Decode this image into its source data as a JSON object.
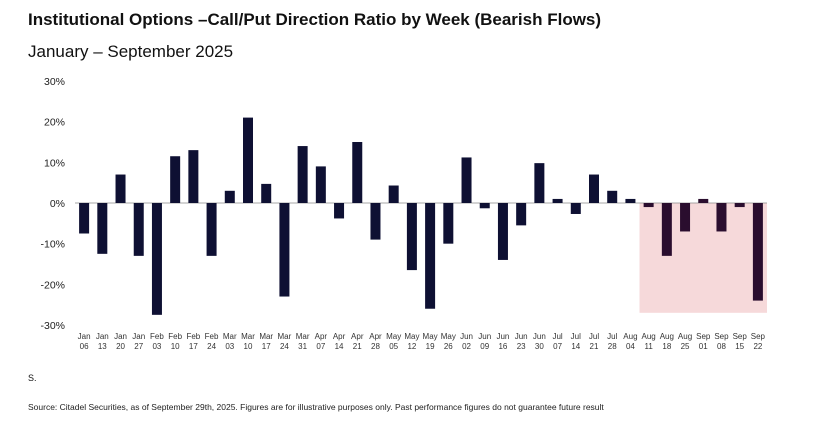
{
  "chart_data": {
    "type": "bar",
    "title": "Institutional Options –Call/Put Direction Ratio by Week (Bearish Flows)",
    "subtitle": "January – September 2025",
    "xlabel": "",
    "ylabel": "",
    "ylim": [
      -30,
      30
    ],
    "y_ticks": [
      "30%",
      "20%",
      "10%",
      "0%",
      "-10%",
      "-20%",
      "-30%"
    ],
    "y_tick_values": [
      30,
      20,
      10,
      0,
      -10,
      -20,
      -30
    ],
    "categories": [
      [
        "Jan",
        "06"
      ],
      [
        "Jan",
        "13"
      ],
      [
        "Jan",
        "20"
      ],
      [
        "Jan",
        "27"
      ],
      [
        "Feb",
        "03"
      ],
      [
        "Feb",
        "10"
      ],
      [
        "Feb",
        "17"
      ],
      [
        "Feb",
        "24"
      ],
      [
        "Mar",
        "03"
      ],
      [
        "Mar",
        "10"
      ],
      [
        "Mar",
        "17"
      ],
      [
        "Mar",
        "24"
      ],
      [
        "Mar",
        "31"
      ],
      [
        "Apr",
        "07"
      ],
      [
        "Apr",
        "14"
      ],
      [
        "Apr",
        "21"
      ],
      [
        "Apr",
        "28"
      ],
      [
        "May",
        "05"
      ],
      [
        "May",
        "12"
      ],
      [
        "May",
        "19"
      ],
      [
        "May",
        "26"
      ],
      [
        "Jun",
        "02"
      ],
      [
        "Jun",
        "09"
      ],
      [
        "Jun",
        "16"
      ],
      [
        "Jun",
        "23"
      ],
      [
        "Jun",
        "30"
      ],
      [
        "Jul",
        "07"
      ],
      [
        "Jul",
        "14"
      ],
      [
        "Jul",
        "21"
      ],
      [
        "Jul",
        "28"
      ],
      [
        "Aug",
        "04"
      ],
      [
        "Aug",
        "11"
      ],
      [
        "Aug",
        "18"
      ],
      [
        "Aug",
        "25"
      ],
      [
        "Sep",
        "01"
      ],
      [
        "Sep",
        "08"
      ],
      [
        "Sep",
        "15"
      ],
      [
        "Sep",
        "22"
      ]
    ],
    "values": [
      -7.5,
      -12.5,
      7,
      -13,
      -27.5,
      11.5,
      13,
      -13,
      3,
      21,
      4.7,
      -23,
      14,
      9,
      -3.8,
      15,
      -9,
      4.3,
      -16.5,
      -26,
      -10,
      11.2,
      -1.3,
      -14,
      -5.5,
      9.8,
      1,
      -2.7,
      7,
      3,
      1,
      -1,
      -13,
      -7,
      1,
      -7,
      -1,
      -24
    ],
    "highlight": {
      "from": "Aug 11",
      "to": "Sep 22",
      "color": "#f6d9da"
    },
    "bar_color": "#0e1033",
    "highlight_bar_color": "#2a0d2e"
  },
  "note": "S.",
  "source": "Source: Citadel Securities, as of September 29th, 2025. Figures are for illustrative purposes only. Past performance figures do not guarantee future result"
}
